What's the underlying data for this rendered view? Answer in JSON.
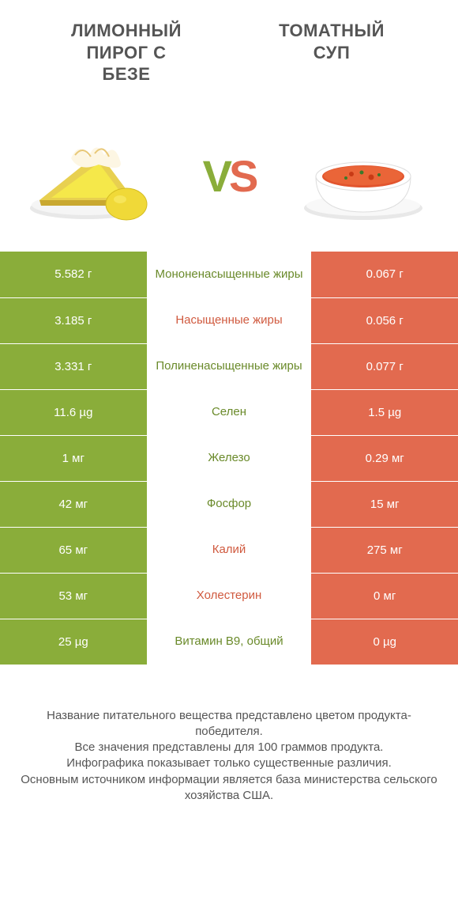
{
  "colors": {
    "left": "#8aad3a",
    "right": "#e26a4f",
    "left_label": "#6a8a2a",
    "right_label": "#d05a3f",
    "bg": "#ffffff",
    "text": "#555555"
  },
  "typography": {
    "title_fontsize": 22,
    "value_fontsize": 15,
    "label_fontsize": 15,
    "footer_fontsize": 15
  },
  "left_food": {
    "title": "ЛИМОННЫЙ\nПИРОГ С\nБЕЗЕ",
    "illustration": "lemon-meringue-pie"
  },
  "right_food": {
    "title": "ТОМАТНЫЙ\nСУП",
    "illustration": "tomato-soup"
  },
  "vs": {
    "v": "V",
    "s": "S"
  },
  "rows": [
    {
      "left": "5.582 г",
      "label": "Мононенасыщенные жиры",
      "right": "0.067 г",
      "winner": "left"
    },
    {
      "left": "3.185 г",
      "label": "Насыщенные жиры",
      "right": "0.056 г",
      "winner": "right"
    },
    {
      "left": "3.331 г",
      "label": "Полиненасыщенные жиры",
      "right": "0.077 г",
      "winner": "left"
    },
    {
      "left": "11.6 µg",
      "label": "Селен",
      "right": "1.5 µg",
      "winner": "left"
    },
    {
      "left": "1 мг",
      "label": "Железо",
      "right": "0.29 мг",
      "winner": "left"
    },
    {
      "left": "42 мг",
      "label": "Фосфор",
      "right": "15 мг",
      "winner": "left"
    },
    {
      "left": "65 мг",
      "label": "Калий",
      "right": "275 мг",
      "winner": "right"
    },
    {
      "left": "53 мг",
      "label": "Холестерин",
      "right": "0 мг",
      "winner": "right"
    },
    {
      "left": "25 µg",
      "label": "Витамин B9, общий",
      "right": "0 µg",
      "winner": "left"
    }
  ],
  "footer_lines": [
    "Название питательного вещества представлено цветом продукта-победителя.",
    "Все значения представлены для 100 граммов продукта.",
    "Инфографика показывает только существенные различия.",
    "Основным источником информации является база министерства сельского хозяйства США."
  ]
}
